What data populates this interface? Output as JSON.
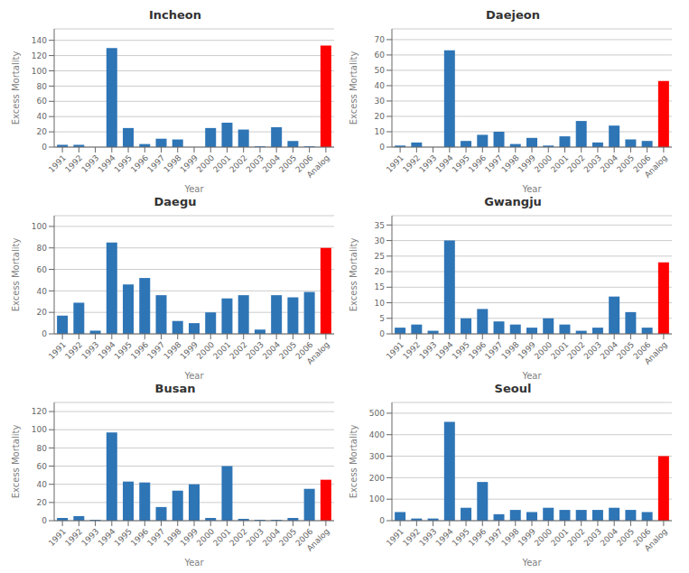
{
  "chart_data": [
    {
      "type": "bar",
      "title": "Incheon",
      "xlabel": "Year",
      "ylabel": "Excess Mortality",
      "categories": [
        "1991",
        "1992",
        "1993",
        "1994",
        "1995",
        "1996",
        "1997",
        "1998",
        "1999",
        "2000",
        "2001",
        "2002",
        "2003",
        "2004",
        "2005",
        "2006",
        "Analog"
      ],
      "values": [
        3,
        3,
        0,
        130,
        25,
        4,
        11,
        10,
        0,
        25,
        32,
        23,
        1,
        26,
        8,
        1,
        133
      ],
      "colors": [
        "#2E75B6",
        "#2E75B6",
        "#2E75B6",
        "#2E75B6",
        "#2E75B6",
        "#2E75B6",
        "#2E75B6",
        "#2E75B6",
        "#2E75B6",
        "#2E75B6",
        "#2E75B6",
        "#2E75B6",
        "#2E75B6",
        "#2E75B6",
        "#2E75B6",
        "#2E75B6",
        "#FF0000"
      ],
      "ylim": [
        0,
        155
      ],
      "yticks": [
        0,
        20,
        40,
        60,
        80,
        100,
        120,
        140
      ],
      "grid": true
    },
    {
      "type": "bar",
      "title": "Daejeon",
      "xlabel": "Year",
      "ylabel": "Excess Mortality",
      "categories": [
        "1991",
        "1992",
        "1993",
        "1994",
        "1995",
        "1996",
        "1997",
        "1998",
        "1999",
        "2000",
        "2001",
        "2002",
        "2003",
        "2004",
        "2005",
        "2006",
        "Analog"
      ],
      "values": [
        1,
        3,
        0,
        63,
        4,
        8,
        10,
        2,
        6,
        1,
        7,
        17,
        3,
        14,
        5,
        4,
        43
      ],
      "colors": [
        "#2E75B6",
        "#2E75B6",
        "#2E75B6",
        "#2E75B6",
        "#2E75B6",
        "#2E75B6",
        "#2E75B6",
        "#2E75B6",
        "#2E75B6",
        "#2E75B6",
        "#2E75B6",
        "#2E75B6",
        "#2E75B6",
        "#2E75B6",
        "#2E75B6",
        "#2E75B6",
        "#FF0000"
      ],
      "ylim": [
        0,
        77
      ],
      "yticks": [
        0,
        10,
        20,
        30,
        40,
        50,
        60,
        70
      ],
      "grid": true
    },
    {
      "type": "bar",
      "title": "Daegu",
      "xlabel": "Year",
      "ylabel": "Excess Mortality",
      "categories": [
        "1991",
        "1992",
        "1993",
        "1994",
        "1995",
        "1996",
        "1997",
        "1998",
        "1999",
        "2000",
        "2001",
        "2002",
        "2003",
        "2004",
        "2005",
        "2006",
        "Analog"
      ],
      "values": [
        17,
        29,
        3,
        85,
        46,
        52,
        36,
        12,
        10,
        20,
        33,
        36,
        4,
        36,
        34,
        39,
        80
      ],
      "colors": [
        "#2E75B6",
        "#2E75B6",
        "#2E75B6",
        "#2E75B6",
        "#2E75B6",
        "#2E75B6",
        "#2E75B6",
        "#2E75B6",
        "#2E75B6",
        "#2E75B6",
        "#2E75B6",
        "#2E75B6",
        "#2E75B6",
        "#2E75B6",
        "#2E75B6",
        "#2E75B6",
        "#FF0000"
      ],
      "ylim": [
        0,
        110
      ],
      "yticks": [
        0,
        20,
        40,
        60,
        80,
        100
      ],
      "grid": true
    },
    {
      "type": "bar",
      "title": "Gwangju",
      "xlabel": "Year",
      "ylabel": "Excess Mortality",
      "categories": [
        "1991",
        "1992",
        "1993",
        "1994",
        "1995",
        "1996",
        "1997",
        "1998",
        "1999",
        "2000",
        "2001",
        "2002",
        "2003",
        "2004",
        "2005",
        "2006",
        "Analog"
      ],
      "values": [
        2,
        3,
        1,
        30,
        5,
        8,
        4,
        3,
        2,
        5,
        3,
        1,
        2,
        12,
        7,
        2,
        23
      ],
      "colors": [
        "#2E75B6",
        "#2E75B6",
        "#2E75B6",
        "#2E75B6",
        "#2E75B6",
        "#2E75B6",
        "#2E75B6",
        "#2E75B6",
        "#2E75B6",
        "#2E75B6",
        "#2E75B6",
        "#2E75B6",
        "#2E75B6",
        "#2E75B6",
        "#2E75B6",
        "#2E75B6",
        "#FF0000"
      ],
      "ylim": [
        0,
        38
      ],
      "yticks": [
        0,
        5,
        10,
        15,
        20,
        25,
        30,
        35
      ],
      "grid": true
    },
    {
      "type": "bar",
      "title": "Busan",
      "xlabel": "Year",
      "ylabel": "Excess Mortality",
      "categories": [
        "1991",
        "1992",
        "1993",
        "1994",
        "1995",
        "1996",
        "1997",
        "1998",
        "1999",
        "2000",
        "2001",
        "2002",
        "2003",
        "2004",
        "2005",
        "2006",
        "Analog"
      ],
      "values": [
        3,
        5,
        1,
        97,
        43,
        42,
        15,
        33,
        40,
        3,
        60,
        2,
        1,
        1,
        3,
        35,
        45
      ],
      "colors": [
        "#2E75B6",
        "#2E75B6",
        "#2E75B6",
        "#2E75B6",
        "#2E75B6",
        "#2E75B6",
        "#2E75B6",
        "#2E75B6",
        "#2E75B6",
        "#2E75B6",
        "#2E75B6",
        "#2E75B6",
        "#2E75B6",
        "#2E75B6",
        "#2E75B6",
        "#2E75B6",
        "#FF0000"
      ],
      "ylim": [
        0,
        130
      ],
      "yticks": [
        0,
        20,
        40,
        60,
        80,
        100,
        120
      ],
      "grid": true
    },
    {
      "type": "bar",
      "title": "Seoul",
      "xlabel": "Year",
      "ylabel": "Excess Mortality",
      "categories": [
        "1991",
        "1992",
        "1993",
        "1994",
        "1995",
        "1996",
        "1997",
        "1998",
        "1999",
        "2000",
        "2001",
        "2002",
        "2003",
        "2004",
        "2005",
        "2006",
        "Analog"
      ],
      "values": [
        40,
        10,
        10,
        460,
        60,
        180,
        30,
        50,
        40,
        60,
        50,
        50,
        50,
        60,
        50,
        40,
        300
      ],
      "colors": [
        "#2E75B6",
        "#2E75B6",
        "#2E75B6",
        "#2E75B6",
        "#2E75B6",
        "#2E75B6",
        "#2E75B6",
        "#2E75B6",
        "#2E75B6",
        "#2E75B6",
        "#2E75B6",
        "#2E75B6",
        "#2E75B6",
        "#2E75B6",
        "#2E75B6",
        "#2E75B6",
        "#FF0000"
      ],
      "ylim": [
        0,
        550
      ],
      "yticks": [
        0,
        100,
        200,
        300,
        400,
        500
      ],
      "grid": true
    }
  ]
}
